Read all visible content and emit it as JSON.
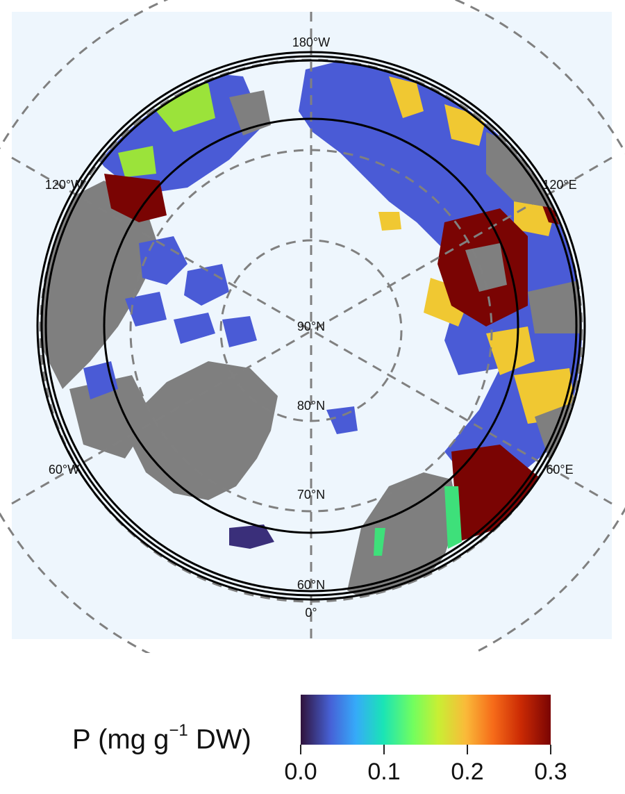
{
  "map": {
    "colors": {
      "ocean": "#eef6fd",
      "no_data_land": "#7f7f7f",
      "graticule": "#808080",
      "low": "#4a5bd6",
      "mid": "#f0c832",
      "high": "#7a0403"
    },
    "meridian_labels": {
      "top": "180°W",
      "bottom": "0°",
      "upper_left": "120°W",
      "upper_right": "120°E",
      "lower_left": "60°W",
      "lower_right": "60°E"
    },
    "parallel_labels": {
      "p90": "90°N",
      "p80": "80°N",
      "p70": "70°N",
      "p60": "60°N"
    }
  },
  "legend": {
    "title_main": "P (mg g",
    "title_exp": "−1",
    "title_end": " DW)",
    "ticks": [
      "0.0",
      "0.1",
      "0.2",
      "0.3"
    ],
    "range": [
      0.0,
      0.3
    ],
    "colormap": "turbo"
  }
}
